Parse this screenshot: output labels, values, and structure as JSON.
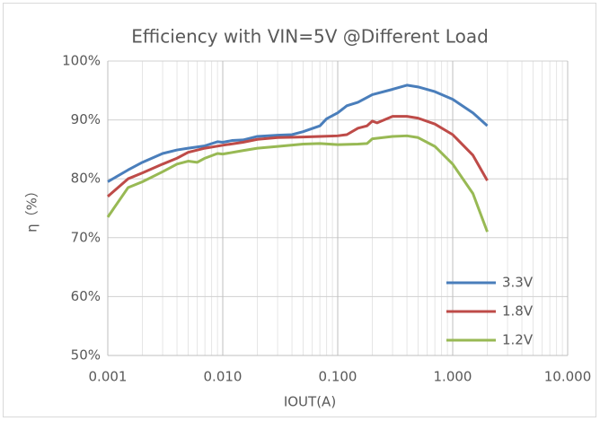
{
  "chart_data": {
    "type": "line",
    "title": "Efficiency with VIN=5V @Different Load",
    "x_label": "IOUT(A)",
    "y_label": "η（%）",
    "xscale": "log",
    "grid": true,
    "legend": "lower right",
    "xlim": [
      0.001,
      10
    ],
    "xticks": [
      0.001,
      {
        "value": 0.01,
        "label": "0.010"
      },
      {
        "value": 0.1,
        "label": "0.100"
      },
      {
        "value": 1,
        "label": "1.000"
      },
      {
        "value": 10,
        "label": "10.000"
      }
    ],
    "xminorticks": [
      0.002,
      0.003,
      0.004,
      0.005,
      0.006,
      0.007,
      0.008,
      0.009,
      0.02,
      0.03,
      0.04,
      0.05,
      0.06,
      0.07,
      0.08,
      0.09,
      0.2,
      0.3,
      0.4,
      0.5,
      0.6,
      0.7,
      0.8,
      0.9,
      2,
      3,
      4,
      5,
      6,
      7,
      8,
      9
    ],
    "ylim": [
      50,
      100
    ],
    "yticks": [
      {
        "value": 50,
        "label": "50%"
      },
      {
        "value": 60,
        "label": "60%"
      },
      {
        "value": 70,
        "label": "70%"
      },
      {
        "value": 80,
        "label": "80%"
      },
      {
        "value": 90,
        "label": "90%"
      },
      {
        "value": 100,
        "label": "100%"
      }
    ],
    "series": [
      {
        "name": "3.3V",
        "color": "#4a7ebb",
        "x": [
          0.001,
          0.0015,
          0.002,
          0.003,
          0.004,
          0.005,
          0.007,
          0.009,
          0.01,
          0.012,
          0.015,
          0.02,
          0.03,
          0.04,
          0.05,
          0.07,
          0.08,
          0.1,
          0.12,
          0.15,
          0.2,
          0.3,
          0.4,
          0.5,
          0.7,
          1.0,
          1.5,
          2.0
        ],
        "values": [
          79.5,
          81.5,
          82.8,
          84.3,
          84.9,
          85.2,
          85.6,
          86.3,
          86.2,
          86.5,
          86.6,
          87.2,
          87.4,
          87.5,
          88.0,
          89.0,
          90.2,
          91.2,
          92.4,
          93.0,
          94.3,
          95.2,
          95.9,
          95.6,
          94.8,
          93.5,
          91.2,
          89.0
        ]
      },
      {
        "name": "1.8V",
        "color": "#be4b48",
        "x": [
          0.001,
          0.0015,
          0.002,
          0.003,
          0.004,
          0.005,
          0.007,
          0.01,
          0.015,
          0.02,
          0.03,
          0.05,
          0.07,
          0.1,
          0.12,
          0.15,
          0.18,
          0.2,
          0.22,
          0.3,
          0.4,
          0.5,
          0.7,
          1.0,
          1.5,
          2.0
        ],
        "values": [
          77.0,
          80.0,
          81.0,
          82.5,
          83.5,
          84.5,
          85.2,
          85.7,
          86.2,
          86.7,
          87.0,
          87.1,
          87.2,
          87.3,
          87.5,
          88.6,
          89.0,
          89.8,
          89.5,
          90.6,
          90.6,
          90.3,
          89.3,
          87.5,
          84.0,
          79.7
        ]
      },
      {
        "name": "1.2V",
        "color": "#98b954",
        "x": [
          0.001,
          0.0015,
          0.002,
          0.003,
          0.004,
          0.005,
          0.006,
          0.007,
          0.009,
          0.01,
          0.015,
          0.02,
          0.03,
          0.05,
          0.07,
          0.1,
          0.15,
          0.18,
          0.2,
          0.3,
          0.4,
          0.5,
          0.7,
          1.0,
          1.5,
          2.0
        ],
        "values": [
          73.5,
          78.5,
          79.5,
          81.2,
          82.5,
          83.0,
          82.8,
          83.5,
          84.3,
          84.2,
          84.8,
          85.2,
          85.5,
          85.9,
          86.0,
          85.8,
          85.9,
          86.0,
          86.8,
          87.2,
          87.3,
          87.0,
          85.5,
          82.5,
          77.5,
          71.0
        ]
      }
    ]
  }
}
